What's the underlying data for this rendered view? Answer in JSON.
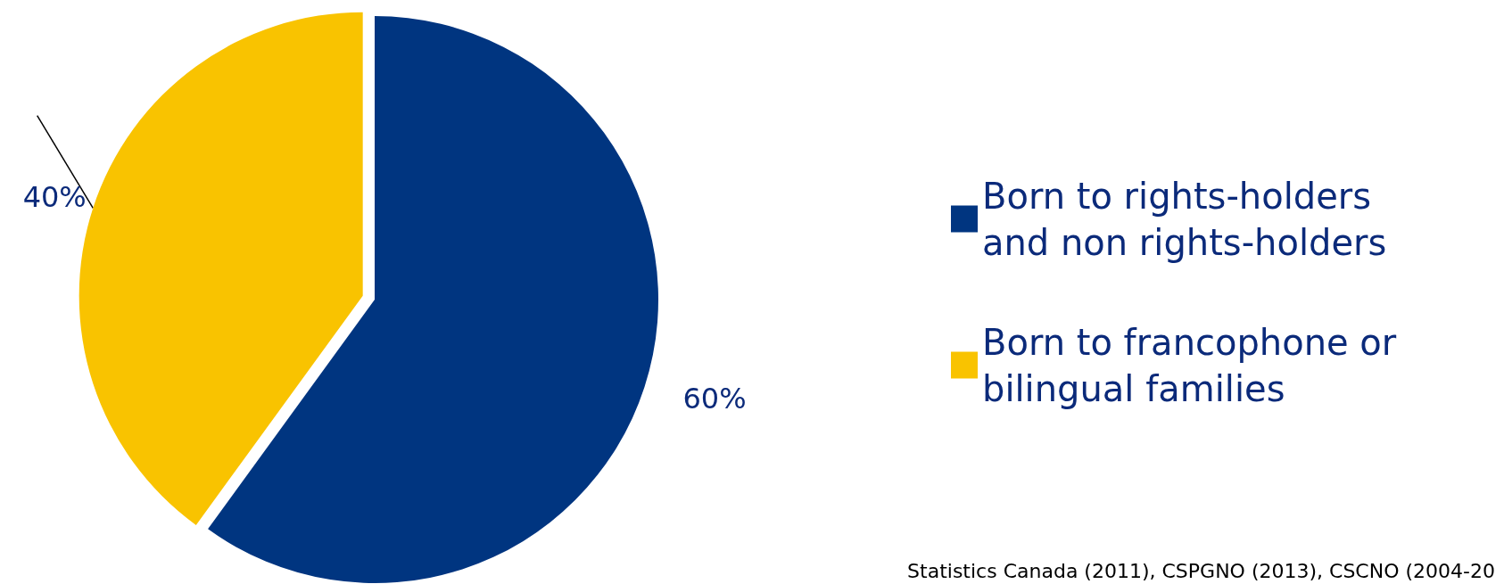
{
  "chart_data": {
    "type": "pie",
    "categories": [
      "Born to rights-holders and non rights-holders",
      "Born to francophone or bilingual families"
    ],
    "values": [
      60,
      40
    ],
    "colors": [
      "#003580",
      "#f9c300"
    ],
    "value_labels": [
      "60%",
      "40%"
    ],
    "legend": "right",
    "annotations": [
      "Statistics Canada (2011), CSPGNO (2013), CSCNO (2004-20"
    ]
  }
}
